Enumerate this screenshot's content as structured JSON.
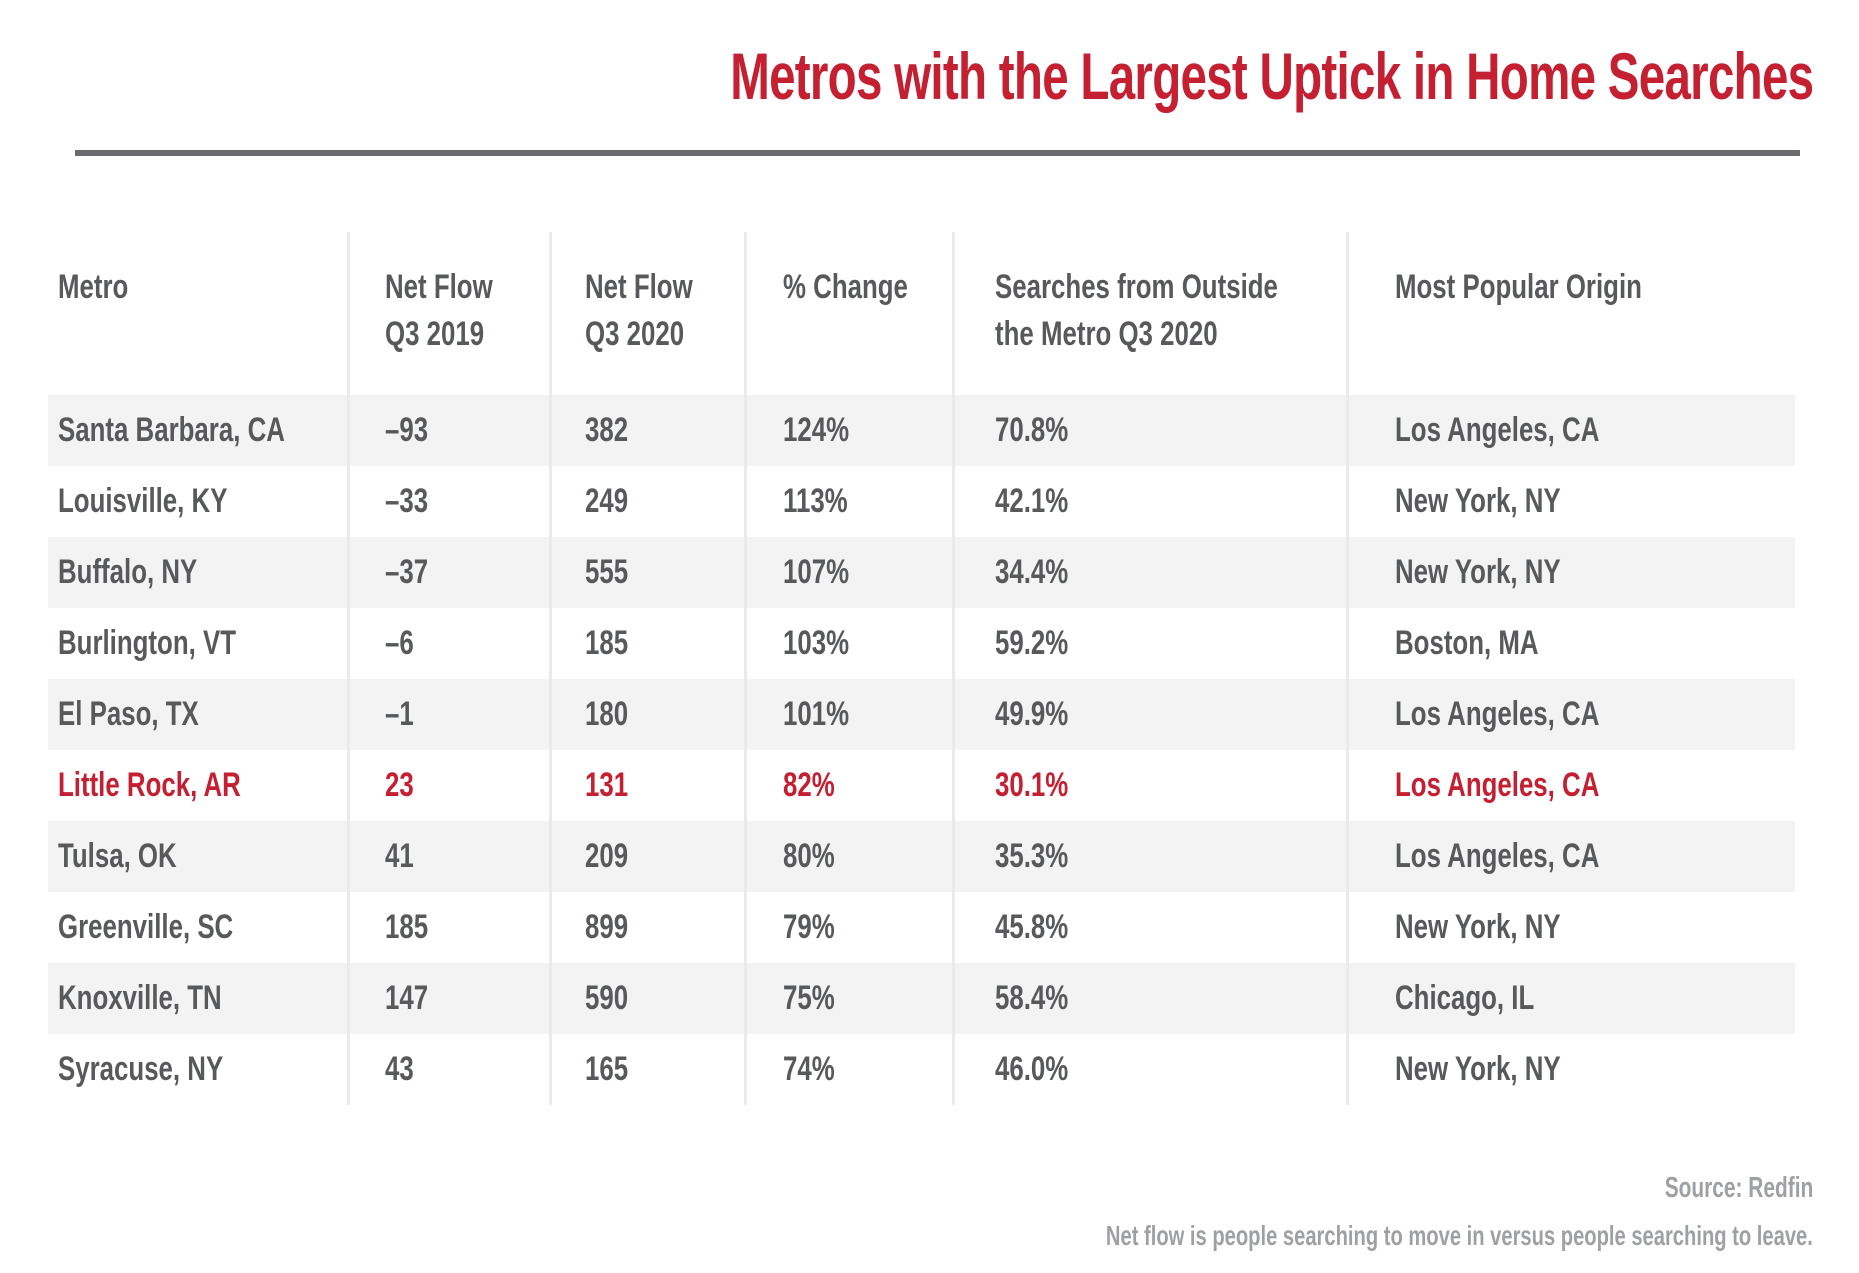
{
  "title": {
    "text": "Metros with the Largest Uptick in Home Searches"
  },
  "footer": {
    "source": "Source: Redfin",
    "note": "Net flow is people searching to move in versus people searching to leave."
  },
  "colors": {
    "accent_red": "#C52032",
    "text_dark_gray": "#58595B",
    "footer_gray": "#9EA0A3",
    "stripe_gray": "#F3F3F4",
    "divider_gray": "#EAEAEC",
    "rule_gray": "#6A6B6E"
  },
  "table": {
    "columns": [
      {
        "id": "metro",
        "lines": [
          "Metro"
        ]
      },
      {
        "id": "net_flow_q3_2019",
        "lines": [
          "Net Flow",
          "Q3 2019"
        ]
      },
      {
        "id": "net_flow_q3_2020",
        "lines": [
          "Net Flow",
          "Q3 2020"
        ]
      },
      {
        "id": "pct_change",
        "lines": [
          "% Change"
        ]
      },
      {
        "id": "searches_outside",
        "lines": [
          "Searches from Outside",
          "the Metro Q3 2020"
        ]
      },
      {
        "id": "origin",
        "lines": [
          "Most Popular Origin"
        ]
      }
    ],
    "rows": [
      {
        "metro": "Santa Barbara, CA",
        "net_flow_q3_2019": "–93",
        "net_flow_q3_2020": "382",
        "pct_change": "124%",
        "searches_outside": "70.8%",
        "origin": "Los Angeles, CA",
        "highlight": false
      },
      {
        "metro": "Louisville, KY",
        "net_flow_q3_2019": "–33",
        "net_flow_q3_2020": "249",
        "pct_change": "113%",
        "searches_outside": "42.1%",
        "origin": "New York, NY",
        "highlight": false
      },
      {
        "metro": "Buffalo, NY",
        "net_flow_q3_2019": "–37",
        "net_flow_q3_2020": "555",
        "pct_change": "107%",
        "searches_outside": "34.4%",
        "origin": "New York, NY",
        "highlight": false
      },
      {
        "metro": "Burlington, VT",
        "net_flow_q3_2019": "–6",
        "net_flow_q3_2020": "185",
        "pct_change": "103%",
        "searches_outside": "59.2%",
        "origin": "Boston, MA",
        "highlight": false
      },
      {
        "metro": "El Paso, TX",
        "net_flow_q3_2019": "–1",
        "net_flow_q3_2020": "180",
        "pct_change": "101%",
        "searches_outside": "49.9%",
        "origin": "Los Angeles, CA",
        "highlight": false
      },
      {
        "metro": "Little Rock, AR",
        "net_flow_q3_2019": "23",
        "net_flow_q3_2020": "131",
        "pct_change": "82%",
        "searches_outside": "30.1%",
        "origin": "Los Angeles, CA",
        "highlight": true
      },
      {
        "metro": "Tulsa, OK",
        "net_flow_q3_2019": "41",
        "net_flow_q3_2020": "209",
        "pct_change": "80%",
        "searches_outside": "35.3%",
        "origin": "Los Angeles, CA",
        "highlight": false
      },
      {
        "metro": "Greenville, SC",
        "net_flow_q3_2019": "185",
        "net_flow_q3_2020": "899",
        "pct_change": "79%",
        "searches_outside": "45.8%",
        "origin": "New York, NY",
        "highlight": false
      },
      {
        "metro": "Knoxville, TN",
        "net_flow_q3_2019": "147",
        "net_flow_q3_2020": "590",
        "pct_change": "75%",
        "searches_outside": "58.4%",
        "origin": "Chicago, IL",
        "highlight": false
      },
      {
        "metro": "Syracuse, NY",
        "net_flow_q3_2019": "43",
        "net_flow_q3_2020": "165",
        "pct_change": "74%",
        "searches_outside": "46.0%",
        "origin": "New York, NY",
        "highlight": false
      }
    ]
  },
  "chart_data": {
    "type": "table",
    "title": "Metros with the Largest Uptick in Home Searches",
    "source": "Redfin",
    "note": "Net flow is people searching to move in versus people searching to leave.",
    "columns": [
      "Metro",
      "Net Flow Q3 2019",
      "Net Flow Q3 2020",
      "% Change",
      "Searches from Outside the Metro Q3 2020",
      "Most Popular Origin"
    ],
    "rows": [
      [
        "Santa Barbara, CA",
        -93,
        382,
        "124%",
        "70.8%",
        "Los Angeles, CA"
      ],
      [
        "Louisville, KY",
        -33,
        249,
        "113%",
        "42.1%",
        "New York, NY"
      ],
      [
        "Buffalo, NY",
        -37,
        555,
        "107%",
        "34.4%",
        "New York, NY"
      ],
      [
        "Burlington, VT",
        -6,
        185,
        "103%",
        "59.2%",
        "Boston, MA"
      ],
      [
        "El Paso, TX",
        -1,
        180,
        "101%",
        "49.9%",
        "Los Angeles, CA"
      ],
      [
        "Little Rock, AR",
        23,
        131,
        "82%",
        "30.1%",
        "Los Angeles, CA"
      ],
      [
        "Tulsa, OK",
        41,
        209,
        "80%",
        "35.3%",
        "Los Angeles, CA"
      ],
      [
        "Greenville, SC",
        185,
        899,
        "79%",
        "45.8%",
        "New York, NY"
      ],
      [
        "Knoxville, TN",
        147,
        590,
        "75%",
        "58.4%",
        "Chicago, IL"
      ],
      [
        "Syracuse, NY",
        43,
        165,
        "74%",
        "46.0%",
        "New York, NY"
      ]
    ],
    "highlighted_row": "Little Rock, AR"
  }
}
